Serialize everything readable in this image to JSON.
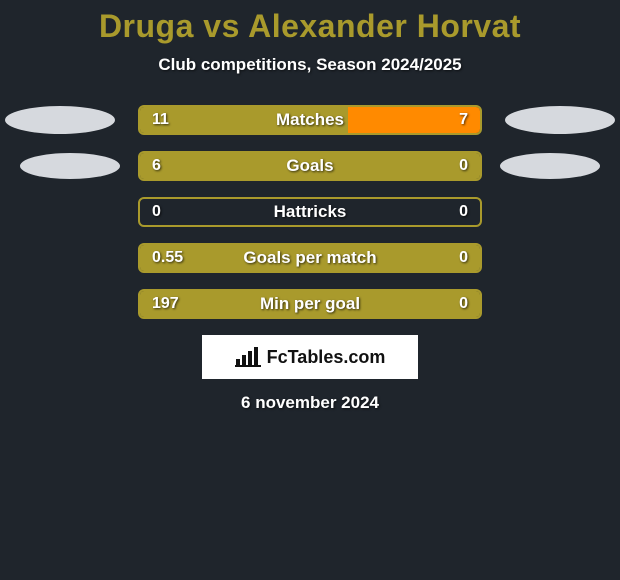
{
  "title": {
    "text": "Druga vs Alexander Horvat",
    "color": "#a99a2c",
    "fontsize": 32,
    "fontweight": 800
  },
  "subtitle": {
    "text": "Club competitions, Season 2024/2025",
    "color": "#ffffff",
    "fontsize": 17
  },
  "date": "6 november 2024",
  "background_color": "#1f252c",
  "avatar_color": "#d6d9de",
  "bar_border_color": "#a99a2c",
  "bar_border_radius": 6,
  "player_left_color": "#a99a2c",
  "player_right_color": "#ff8a00",
  "empty_fill_color": "transparent",
  "logo": {
    "text": "FcTables.com",
    "bg": "#ffffff",
    "fg": "#111111"
  },
  "rows": [
    {
      "label": "Matches",
      "left_value": "11",
      "right_value": "7",
      "left_num": 11,
      "right_num": 7,
      "show_left_avatar": "ellipse-large",
      "show_right_avatar": "ellipse-large"
    },
    {
      "label": "Goals",
      "left_value": "6",
      "right_value": "0",
      "left_num": 6,
      "right_num": 0,
      "show_left_avatar": "ellipse-small",
      "show_right_avatar": "ellipse-small"
    },
    {
      "label": "Hattricks",
      "left_value": "0",
      "right_value": "0",
      "left_num": 0,
      "right_num": 0,
      "show_left_avatar": "none",
      "show_right_avatar": "none"
    },
    {
      "label": "Goals per match",
      "left_value": "0.55",
      "right_value": "0",
      "left_num": 0.55,
      "right_num": 0,
      "show_left_avatar": "none",
      "show_right_avatar": "none"
    },
    {
      "label": "Min per goal",
      "left_value": "197",
      "right_value": "0",
      "left_num": 197,
      "right_num": 0,
      "show_left_avatar": "none",
      "show_right_avatar": "none"
    }
  ]
}
